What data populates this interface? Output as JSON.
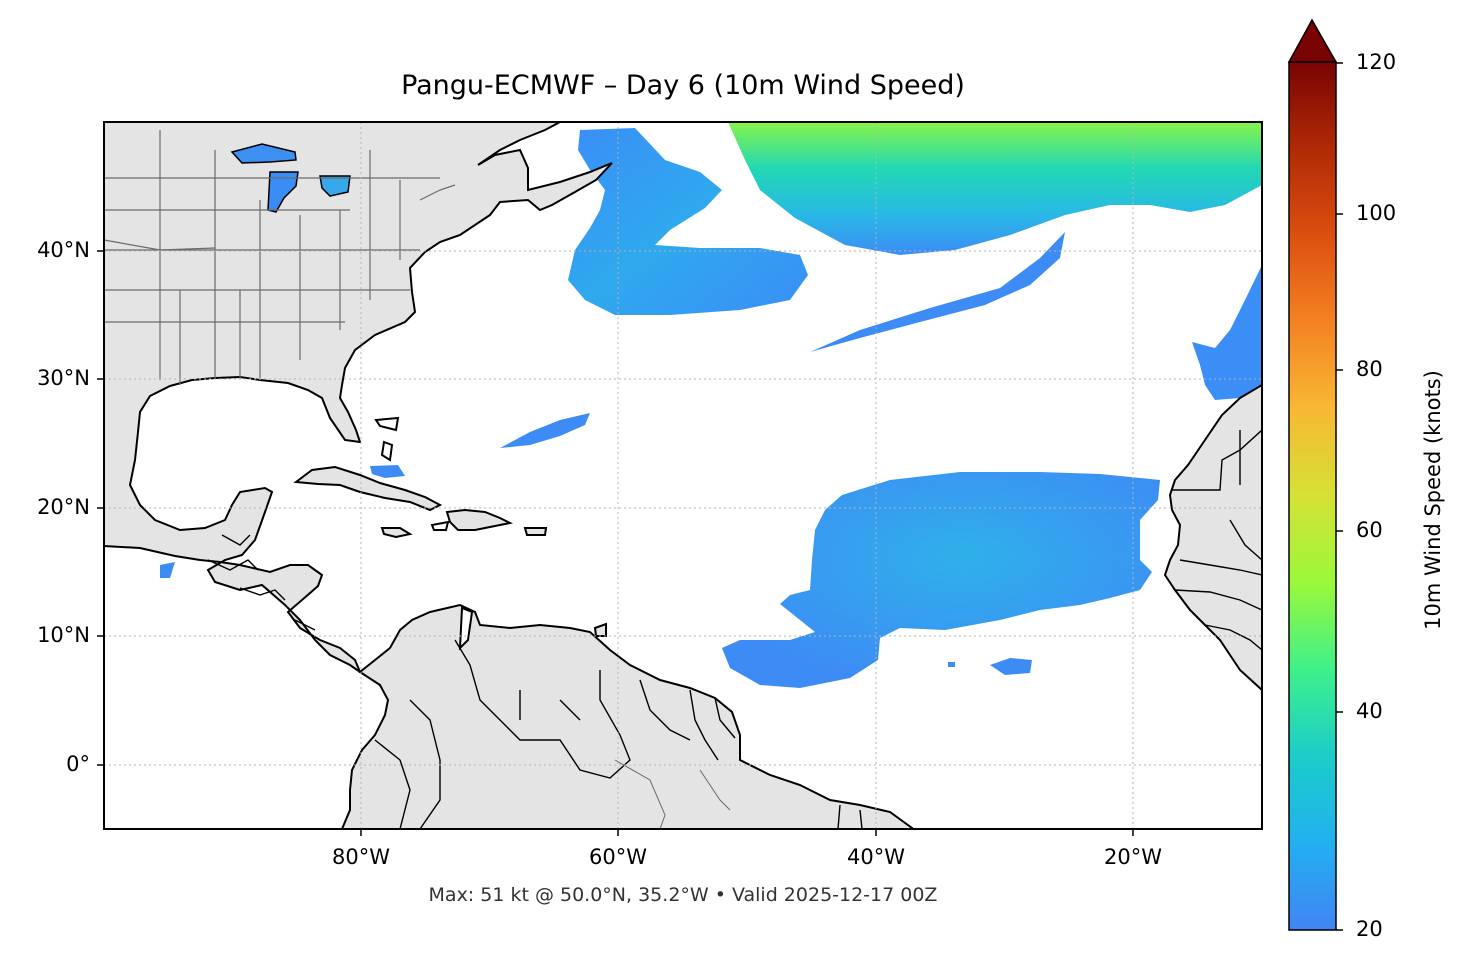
{
  "map": {
    "title": "Pangu-ECMWF – Day 6 (10m Wind Speed)",
    "footer": "Max: 51 kt @ 50.0°N, 35.2°W • Valid 2025-12-17 00Z",
    "lat_labels": [
      "40°N",
      "30°N",
      "20°N",
      "10°N",
      "0°"
    ],
    "lon_labels": [
      "80°W",
      "60°W",
      "40°W",
      "20°W"
    ],
    "colors": {
      "land": "#e4e4e4",
      "coast": "#000000",
      "borders": "#6b6b6b",
      "wind_low": "#3d8cf5",
      "wind_mid": "#29b8e6",
      "wind_high": "#7cf24f"
    }
  },
  "colorbar": {
    "label": "10m Wind Speed (knots)",
    "ticks": [
      "120",
      "100",
      "80",
      "60",
      "40",
      "20"
    ],
    "min": 20,
    "max": 120,
    "extend": "max"
  }
}
